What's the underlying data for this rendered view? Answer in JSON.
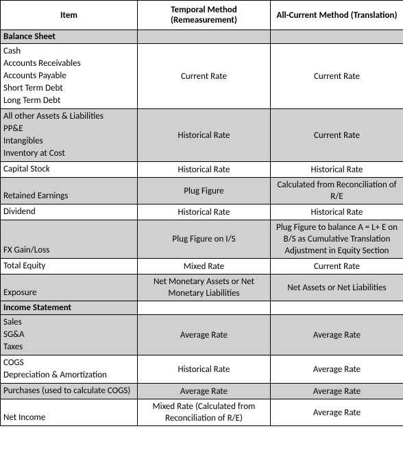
{
  "headers": {
    "item": "Item",
    "temporal": "Temporal Method (Remeasurement)",
    "allcurrent": "All-Current Method (Translation)"
  },
  "sections": {
    "balance_sheet": "Balance Sheet",
    "income_statement": "Income Statement"
  },
  "rows": {
    "r1": {
      "items": [
        "Cash",
        "Accounts Receivables",
        "Accounts Payable",
        "Short Term Debt",
        "Long Term Debt"
      ],
      "temporal": "Current Rate",
      "allcurrent": "Current Rate"
    },
    "r2": {
      "items": [
        "All other Assets & Liabilities",
        "PP&E",
        "Intangibles",
        "Inventory at Cost"
      ],
      "temporal": "Historical Rate",
      "allcurrent": "Current Rate"
    },
    "r3": {
      "items": [
        "Capital Stock"
      ],
      "temporal": "Historical Rate",
      "allcurrent": "Historical Rate"
    },
    "r4": {
      "items": [
        "Retained Earnings"
      ],
      "temporal": "Plug Figure",
      "allcurrent": "Calculated from Reconciliation of R/E"
    },
    "r5": {
      "items": [
        "Dividend"
      ],
      "temporal": "Historical Rate",
      "allcurrent": "Historical Rate"
    },
    "r6": {
      "items": [
        "FX Gain/Loss"
      ],
      "temporal": "Plug Figure on I/S",
      "allcurrent": "Plug Figure to balance A = L+ E on B/S as Cumulative Translation Adjustment in Equity Section"
    },
    "r7": {
      "items": [
        "Total Equity"
      ],
      "temporal": "Mixed Rate",
      "allcurrent": "Current Rate"
    },
    "r8": {
      "items": [
        "Exposure"
      ],
      "temporal": "Net Monetary Assets or Net Monetary Liabilities",
      "allcurrent": "Net Assets or Net Liabilities"
    },
    "r9": {
      "items": [
        "Sales",
        "SG&A",
        "Taxes"
      ],
      "temporal": "Average Rate",
      "allcurrent": "Average Rate"
    },
    "r10": {
      "items": [
        "COGS",
        "Depreciation & Amortization"
      ],
      "temporal": "Historical Rate",
      "allcurrent": "Average Rate"
    },
    "r11": {
      "items": [
        "Purchases (used to calculate COGS)"
      ],
      "temporal": "Average Rate",
      "allcurrent": "Average Rate"
    },
    "r12": {
      "items": [
        "Net Income"
      ],
      "temporal": "Mixed Rate (Calculated from Reconciliation of R/E)",
      "allcurrent": "Average Rate"
    }
  }
}
